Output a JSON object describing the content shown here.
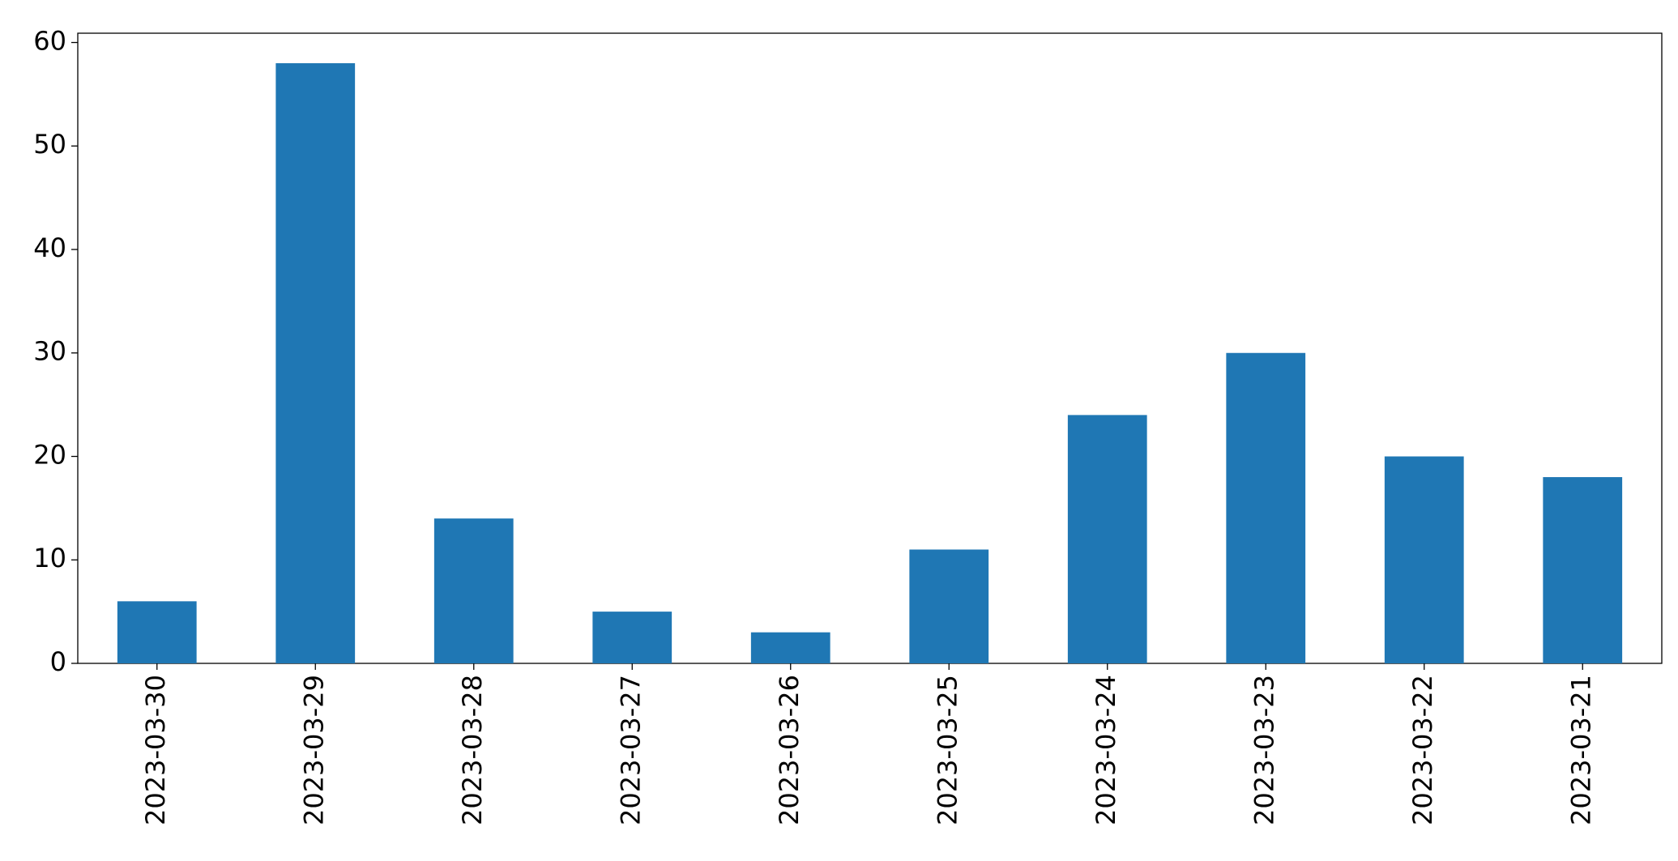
{
  "chart_data": {
    "type": "bar",
    "categories": [
      "2023-03-30",
      "2023-03-29",
      "2023-03-28",
      "2023-03-27",
      "2023-03-26",
      "2023-03-25",
      "2023-03-24",
      "2023-03-23",
      "2023-03-22",
      "2023-03-21"
    ],
    "values": [
      6,
      58,
      14,
      5,
      3,
      11,
      24,
      30,
      20,
      18
    ],
    "color": "#1f77b4",
    "ylim": [
      0,
      60.9
    ],
    "yticks": [
      0,
      10,
      20,
      30,
      40,
      50,
      60
    ],
    "grid": false
  }
}
